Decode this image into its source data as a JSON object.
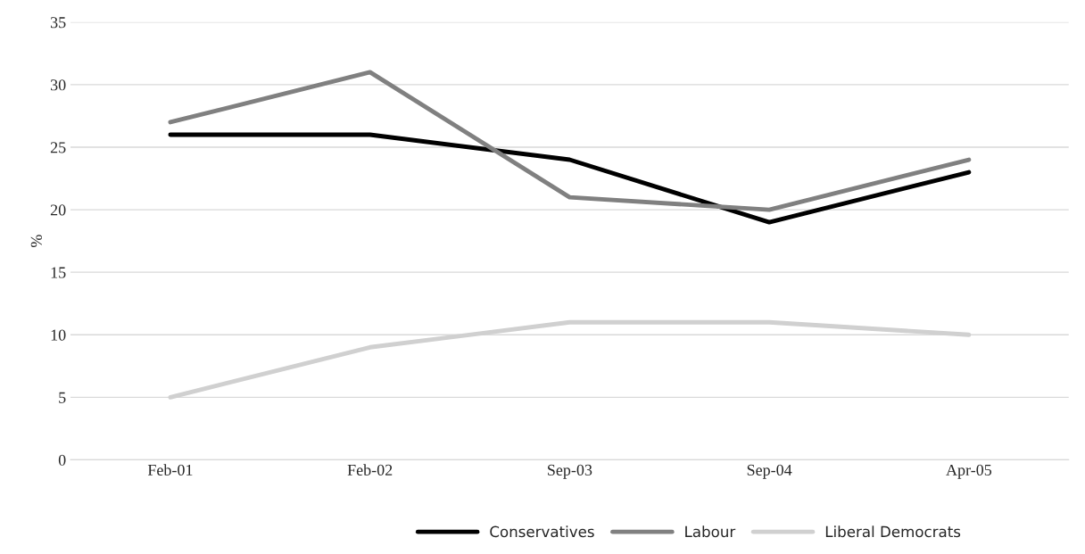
{
  "chart_data": {
    "type": "line",
    "ylabel": "%",
    "categories": [
      "Feb-01",
      "Feb-02",
      "Sep-03",
      "Sep-04",
      "Apr-05"
    ],
    "series": [
      {
        "name": "Conservatives",
        "color": "#000000",
        "values": [
          26,
          26,
          24,
          19,
          23
        ]
      },
      {
        "name": "Labour",
        "color": "#808080",
        "values": [
          27,
          31,
          21,
          20,
          24
        ]
      },
      {
        "name": "Liberal Democrats",
        "color": "#d0d0d0",
        "values": [
          5,
          9,
          11,
          11,
          10
        ]
      }
    ],
    "ylim": [
      0,
      35
    ],
    "yticks": [
      0,
      5,
      10,
      15,
      20,
      25,
      30,
      35
    ],
    "grid": "y",
    "legend": "bottom",
    "marker": "none",
    "line_style": "solid"
  }
}
